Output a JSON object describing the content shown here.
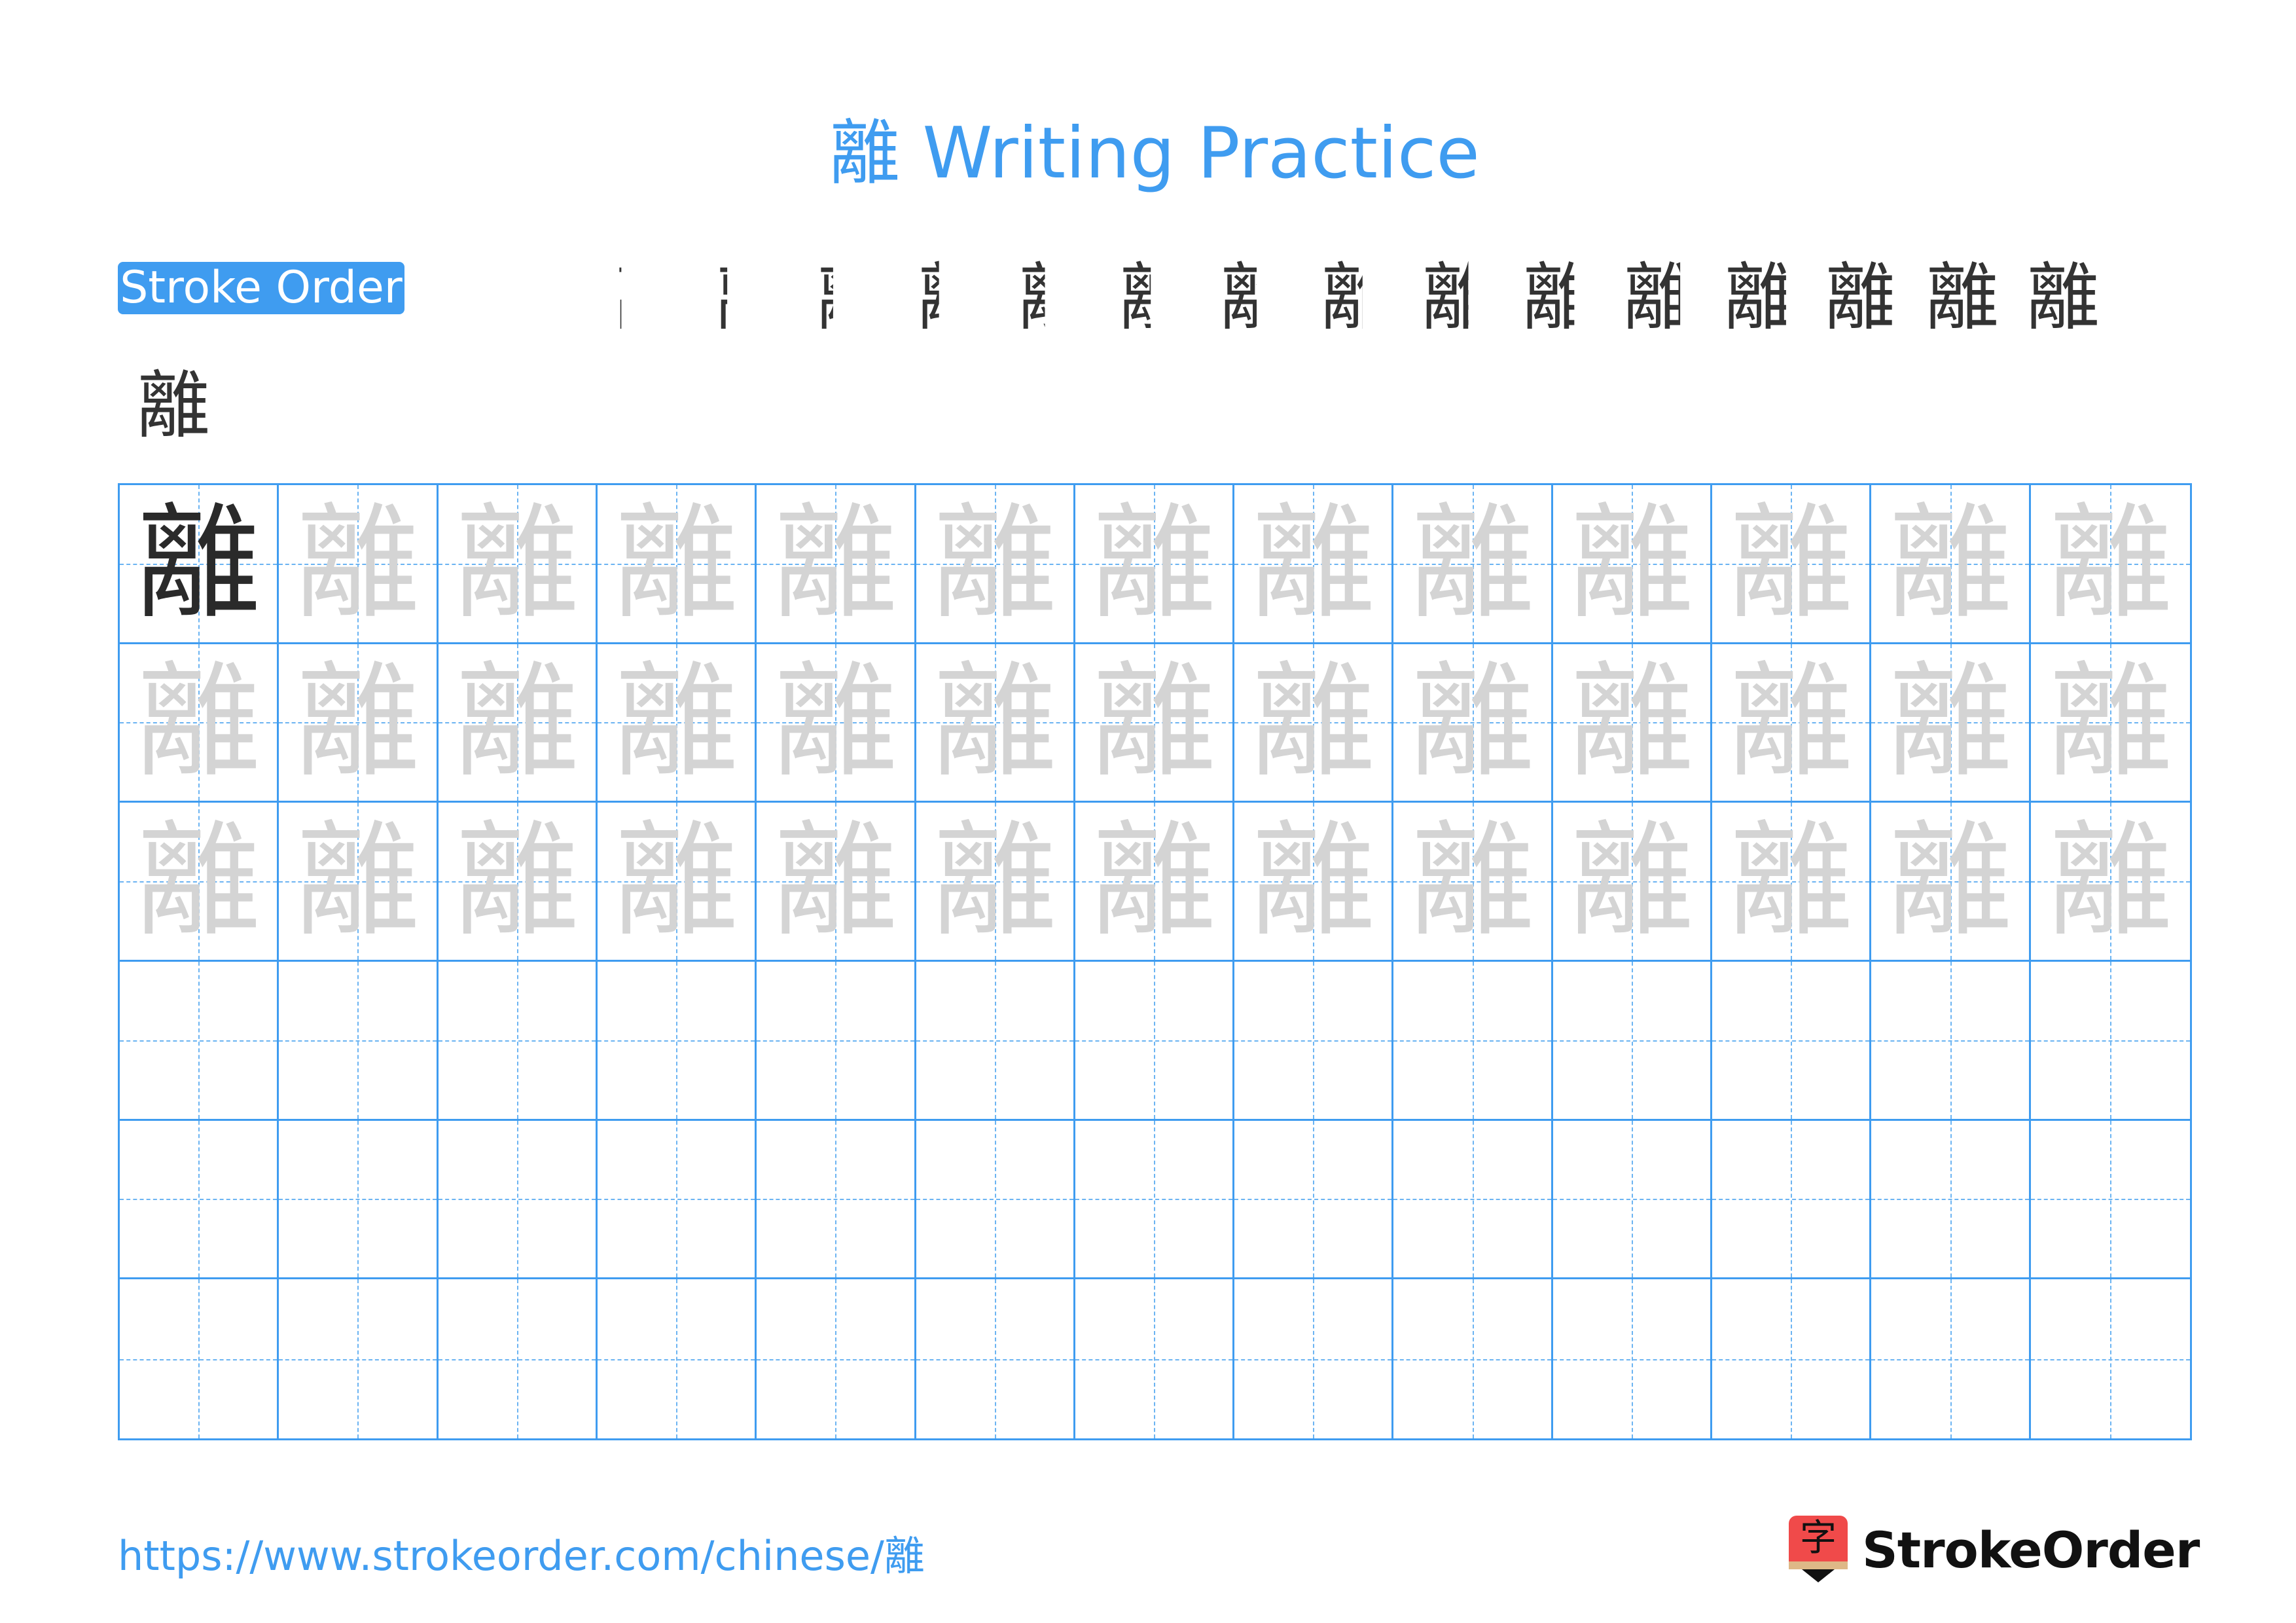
{
  "title": "離 Writing Practice",
  "character": "離",
  "stroke_order": {
    "label": "Stroke Order",
    "total_strokes": 18,
    "highlight_color": "#ff0000",
    "ink_color": "#333333"
  },
  "grid": {
    "columns": 13,
    "rows": 6,
    "model_cells": 1,
    "trace_rows": 3,
    "line_color": "#3f9cf0",
    "trace_color": "#d4d4d4"
  },
  "footer": {
    "url": "https://www.strokeorder.com/chinese/離",
    "logo_glyph": "字",
    "logo_text": "StrokeOrder"
  },
  "colors": {
    "accent": "#3f9cf0",
    "logo_red": "#f04a4a"
  }
}
